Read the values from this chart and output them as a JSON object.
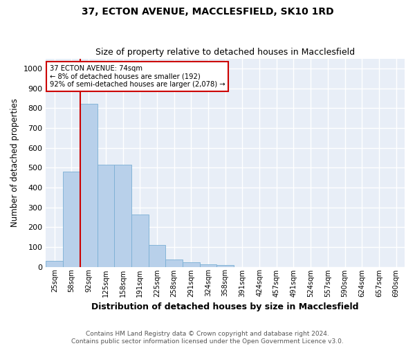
{
  "title1": "37, ECTON AVENUE, MACCLESFIELD, SK10 1RD",
  "title2": "Size of property relative to detached houses in Macclesfield",
  "xlabel": "Distribution of detached houses by size in Macclesfield",
  "ylabel": "Number of detached properties",
  "bar_color": "#b8d0ea",
  "bar_edge_color": "#7aafd4",
  "background_color": "#e8eef7",
  "grid_color": "#ffffff",
  "annotation_line_color": "#cc0000",
  "annotation_box_color": "#cc0000",
  "annotation_text": "37 ECTON AVENUE: 74sqm\n← 8% of detached houses are smaller (192)\n92% of semi-detached houses are larger (2,078) →",
  "categories": [
    "25sqm",
    "58sqm",
    "92sqm",
    "125sqm",
    "158sqm",
    "191sqm",
    "225sqm",
    "258sqm",
    "291sqm",
    "324sqm",
    "358sqm",
    "391sqm",
    "424sqm",
    "457sqm",
    "491sqm",
    "524sqm",
    "557sqm",
    "590sqm",
    "624sqm",
    "657sqm",
    "690sqm"
  ],
  "values": [
    28,
    480,
    820,
    515,
    515,
    265,
    110,
    38,
    22,
    12,
    8,
    0,
    0,
    0,
    0,
    0,
    0,
    0,
    0,
    0,
    0
  ],
  "property_bin": 1,
  "ylim": [
    0,
    1050
  ],
  "yticks": [
    0,
    100,
    200,
    300,
    400,
    500,
    600,
    700,
    800,
    900,
    1000
  ],
  "footnote": "Contains HM Land Registry data © Crown copyright and database right 2024.\nContains public sector information licensed under the Open Government Licence v3.0."
}
